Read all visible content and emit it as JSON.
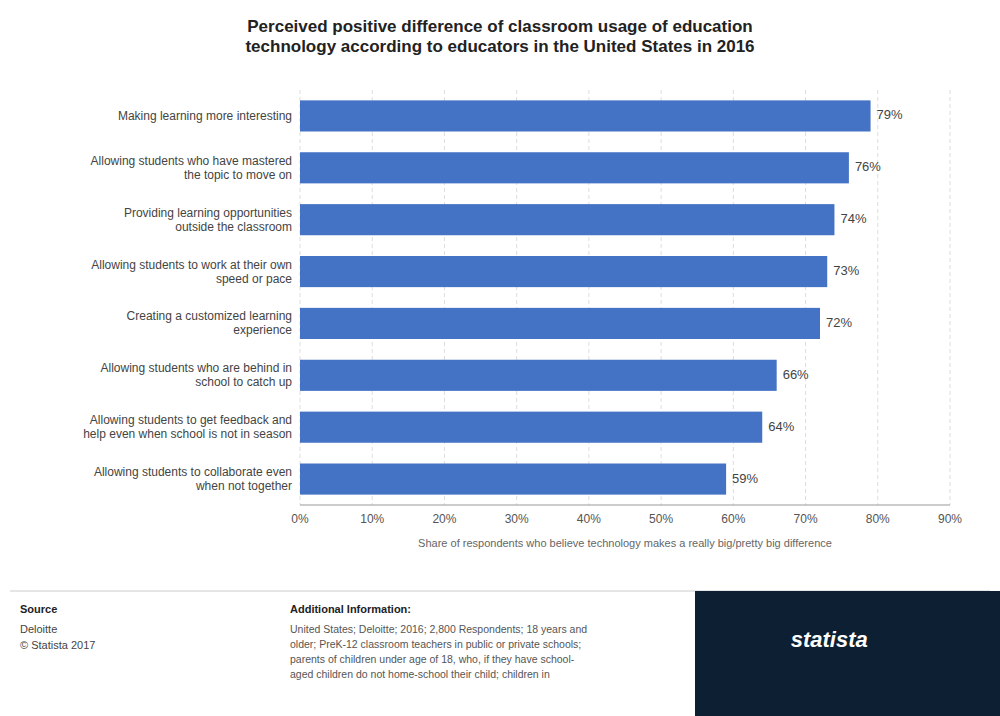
{
  "chart_data": {
    "type": "bar",
    "orientation": "horizontal",
    "title": "Perceived positive difference of classroom usage of education\ntechnology according to educators in the United States in 2016",
    "categories": [
      "Allowing students to collaborate even\nwhen not together",
      "Allowing students to get feedback and\nhelp even when school is not in season",
      "Allowing students who are behind in\nschool to catch up",
      "Creating a customized learning\nexperience",
      "Allowing students to work at their own\nspeed or pace",
      "Providing learning opportunities\noutside the classroom",
      "Allowing students who have mastered\nthe topic to move on",
      "Making learning more interesting"
    ],
    "values": [
      59,
      64,
      66,
      72,
      73,
      74,
      76,
      79
    ],
    "value_labels": [
      "59%",
      "64%",
      "66%",
      "72%",
      "73%",
      "74%",
      "76%",
      "79%"
    ],
    "data_labels": true,
    "color": "#4472c4",
    "xlabel": "Share of respondents who believe technology makes a really big/pretty big difference",
    "xlim": [
      0,
      90
    ],
    "xticks": [
      {
        "value": 0,
        "label": "0%"
      },
      {
        "value": 10,
        "label": "10%"
      },
      {
        "value": 20,
        "label": "20%"
      },
      {
        "value": 30,
        "label": "30%"
      },
      {
        "value": 40,
        "label": "40%"
      },
      {
        "value": 50,
        "label": "50%"
      },
      {
        "value": 60,
        "label": "60%"
      },
      {
        "value": 70,
        "label": "70%"
      },
      {
        "value": 80,
        "label": "80%"
      },
      {
        "value": 90,
        "label": "90%"
      }
    ],
    "grid": true,
    "source_title": "Source",
    "source": "Deloitte\n© Statista 2017",
    "additional_info_title": "Additional Information:",
    "additional_info": "United States; Deloitte; 2016; 2,800 Respondents; 18 years and\nolder; PreK-12 classroom teachers in public or private schools;\nparents of children under age of 18, who, if they have school-\naged children do not home-school their child; children in",
    "logo_text": "statista"
  }
}
